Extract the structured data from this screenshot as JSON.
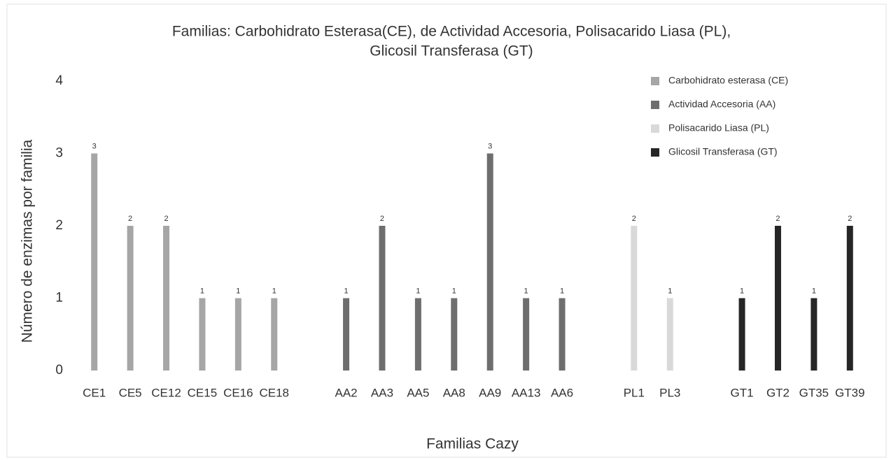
{
  "chart_data": {
    "type": "bar",
    "title": [
      "Familias: Carbohidrato Esterasa(CE), de Actividad Accesoria, Polisacarido Liasa (PL),",
      "Glicosil Transferasa (GT)"
    ],
    "x_label": "Familias Cazy",
    "y_label": "Número de enzimas por familia",
    "categories": [
      "CE1",
      "CE5",
      "CE12",
      "CE15",
      "CE16",
      "CE18",
      null,
      "AA2",
      "AA3",
      "AA5",
      "AA8",
      "AA9",
      "AA13",
      "AA6",
      null,
      "PL1",
      "PL3",
      null,
      "GT1",
      "GT2",
      "GT35",
      "GT39"
    ],
    "series": [
      {
        "name": "Carbohidrato esterasa (CE)",
        "color": "#a6a6a6",
        "values": [
          3,
          2,
          2,
          1,
          1,
          1,
          null,
          null,
          null,
          null,
          null,
          null,
          null,
          null,
          null,
          null,
          null,
          null,
          null,
          null,
          null,
          null
        ]
      },
      {
        "name": "Actividad Accesoria (AA)",
        "color": "#6e6e6e",
        "values": [
          null,
          null,
          null,
          null,
          null,
          null,
          null,
          1,
          2,
          1,
          1,
          3,
          1,
          1,
          null,
          null,
          null,
          null,
          null,
          null,
          null,
          null
        ]
      },
      {
        "name": "Polisacarido Liasa (PL)",
        "color": "#d9d9d9",
        "values": [
          null,
          null,
          null,
          null,
          null,
          null,
          null,
          null,
          null,
          null,
          null,
          null,
          null,
          null,
          null,
          2,
          1,
          null,
          null,
          null,
          null,
          null
        ]
      },
      {
        "name": "Glicosil Transferasa (GT)",
        "color": "#262626",
        "values": [
          null,
          null,
          null,
          null,
          null,
          null,
          null,
          null,
          null,
          null,
          null,
          null,
          null,
          null,
          null,
          null,
          null,
          null,
          1,
          2,
          1,
          2
        ]
      }
    ],
    "ylim": [
      0,
      4
    ],
    "yticks": [
      0,
      1,
      2,
      3,
      4
    ],
    "grid": false,
    "legend": "top-right",
    "data_labels": true
  }
}
